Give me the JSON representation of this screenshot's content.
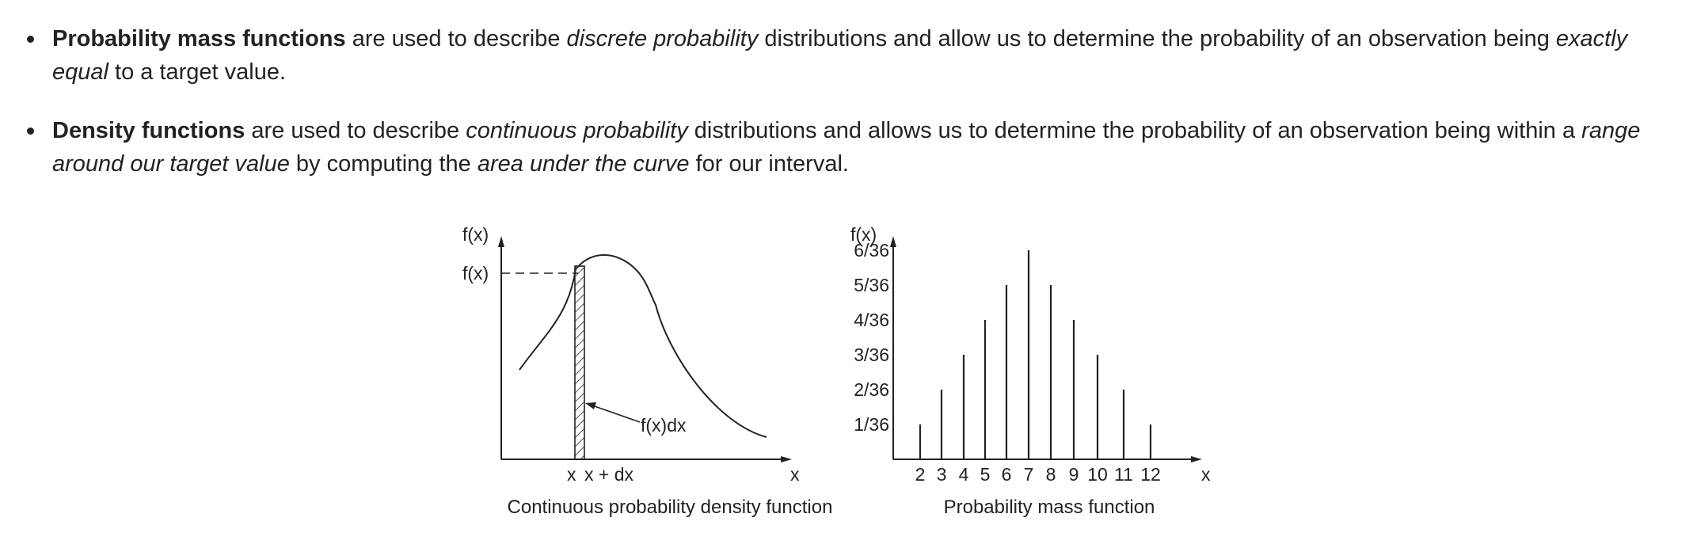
{
  "bullets": [
    {
      "segments": [
        {
          "text": "Probability mass functions",
          "style": "bold"
        },
        {
          "text": " are used to describe ",
          "style": "normal"
        },
        {
          "text": "discrete probability",
          "style": "italic"
        },
        {
          "text": " distributions and allow us to determine the probability of an observation being ",
          "style": "normal"
        },
        {
          "text": "exactly equal",
          "style": "italic"
        },
        {
          "text": " to a target value.",
          "style": "normal"
        }
      ]
    },
    {
      "segments": [
        {
          "text": "Density functions",
          "style": "bold"
        },
        {
          "text": " are used to describe ",
          "style": "normal"
        },
        {
          "text": "continuous probability",
          "style": "italic"
        },
        {
          "text": " distributions and allows us to determine the probability of an observation being within a ",
          "style": "normal"
        },
        {
          "text": "range around our target value",
          "style": "italic"
        },
        {
          "text": " by computing the ",
          "style": "normal"
        },
        {
          "text": "area under the curve",
          "style": "italic"
        },
        {
          "text": " for our interval.",
          "style": "normal"
        }
      ]
    }
  ],
  "pdf_figure": {
    "y_axis_label": "f(x)",
    "y_marker_label": "f(x)",
    "x_axis_label": "x",
    "x_tick_x": "x",
    "x_tick_x_dx": "x + dx",
    "strip_annotation": "f(x)dx",
    "caption": "Continuous probability density function"
  },
  "pmf_figure": {
    "y_axis_label": "f(x)",
    "x_axis_label": "x",
    "caption": "Probability mass function"
  },
  "chart_data": [
    {
      "type": "line",
      "title": "Continuous probability density function",
      "xlabel": "x",
      "ylabel": "f(x)",
      "annotations": [
        "f(x)",
        "x",
        "x + dx",
        "f(x)dx"
      ],
      "grid": false
    },
    {
      "type": "bar",
      "title": "Probability mass function",
      "xlabel": "x",
      "ylabel": "f(x)",
      "categories": [
        "2",
        "3",
        "4",
        "5",
        "6",
        "7",
        "8",
        "9",
        "10",
        "11",
        "12"
      ],
      "values": [
        1,
        2,
        3,
        4,
        5,
        6,
        5,
        4,
        3,
        2,
        1
      ],
      "value_denominator": 36,
      "y_tick_labels": [
        "1/36",
        "2/36",
        "3/36",
        "4/36",
        "5/36",
        "6/36"
      ],
      "ylim": [
        0,
        6
      ],
      "grid": false
    }
  ]
}
